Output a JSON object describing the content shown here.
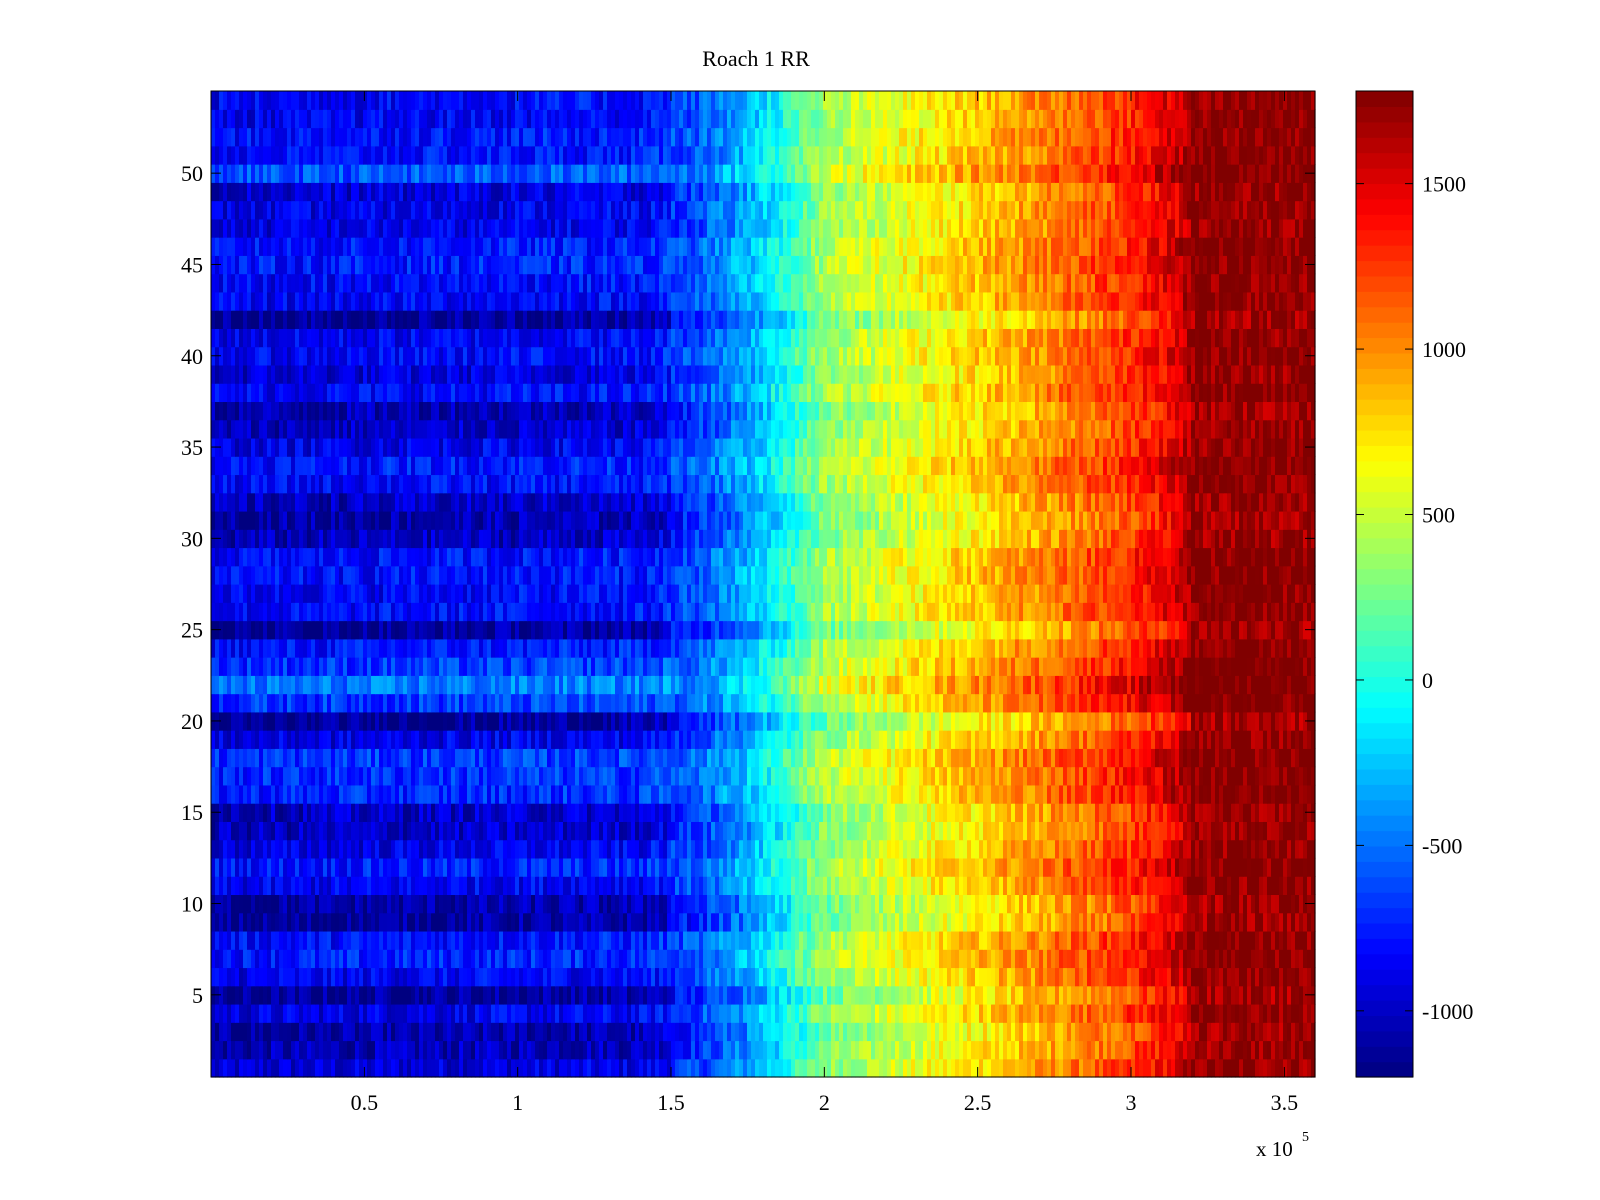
{
  "chart_data": {
    "type": "heatmap",
    "title": "Roach 1 RR",
    "xlabel": "",
    "ylabel": "",
    "x_exponent_label": "x 10",
    "x_exponent_power": "5",
    "colormap": "jet",
    "x_range": [
      0,
      360000
    ],
    "y_range": [
      0.5,
      54.5
    ],
    "rows": 54,
    "xlim": [
      0,
      3.6
    ],
    "ylim": [
      0.5,
      54.5
    ],
    "clim": [
      -1200,
      1780
    ],
    "x_ticks": [
      {
        "value": 0.5,
        "label": "0.5"
      },
      {
        "value": 1,
        "label": "1"
      },
      {
        "value": 1.5,
        "label": "1.5"
      },
      {
        "value": 2,
        "label": "2"
      },
      {
        "value": 2.5,
        "label": "2.5"
      },
      {
        "value": 3,
        "label": "3"
      },
      {
        "value": 3.5,
        "label": "3.5"
      }
    ],
    "y_ticks": [
      {
        "value": 5,
        "label": "5"
      },
      {
        "value": 10,
        "label": "10"
      },
      {
        "value": 15,
        "label": "15"
      },
      {
        "value": 20,
        "label": "20"
      },
      {
        "value": 25,
        "label": "25"
      },
      {
        "value": 30,
        "label": "30"
      },
      {
        "value": 35,
        "label": "35"
      },
      {
        "value": 40,
        "label": "40"
      },
      {
        "value": 45,
        "label": "45"
      },
      {
        "value": 50,
        "label": "50"
      }
    ],
    "colorbar_ticks": [
      {
        "value": -1000,
        "label": "-1000"
      },
      {
        "value": -500,
        "label": "-500"
      },
      {
        "value": 0,
        "label": "0"
      },
      {
        "value": 500,
        "label": "500"
      },
      {
        "value": 1000,
        "label": "1000"
      },
      {
        "value": 1500,
        "label": "1500"
      }
    ],
    "value_profile": {
      "x": [
        0,
        0.3,
        1.4,
        1.6,
        1.75,
        1.85,
        2.0,
        2.3,
        2.7,
        3.0,
        3.15,
        3.2,
        3.6
      ],
      "base": [
        -780,
        -760,
        -700,
        -520,
        -250,
        0,
        430,
        700,
        1050,
        1350,
        1600,
        1780,
        1780
      ]
    },
    "row_offsets": [
      -200,
      -300,
      -350,
      -150,
      -380,
      -120,
      0,
      -50,
      -380,
      -350,
      -120,
      -10,
      -160,
      -260,
      -250,
      20,
      40,
      70,
      -160,
      -400,
      80,
      260,
      70,
      -40,
      -380,
      -80,
      -100,
      -60,
      -60,
      -280,
      -330,
      -270,
      -80,
      -20,
      -140,
      -260,
      -300,
      -80,
      -200,
      -100,
      -120,
      -380,
      -100,
      -80,
      -20,
      -40,
      -160,
      -150,
      -200,
      160,
      -60,
      -40,
      -120,
      -90
    ]
  }
}
